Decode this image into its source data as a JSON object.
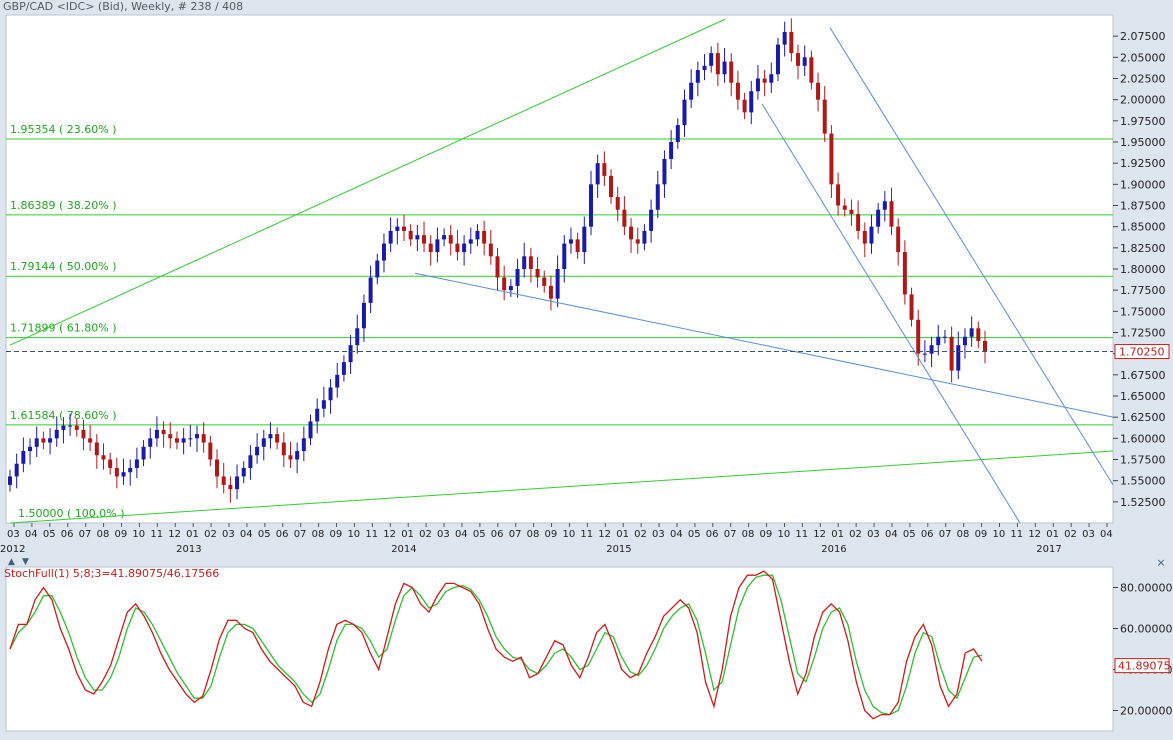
{
  "title": "GBP/CAD <IDC> (Bid), Weekly, # 238 / 408",
  "window_controls": {
    "close": "×",
    "up": "▲",
    "down": "▼"
  },
  "price_chart": {
    "type": "candlestick",
    "ylim": [
      1.5,
      2.1
    ],
    "ytick_labels": [
      "2.07500",
      "2.05000",
      "2.02500",
      "2.00000",
      "1.97500",
      "1.95000",
      "1.92500",
      "1.90000",
      "1.87500",
      "1.85000",
      "1.82500",
      "1.80000",
      "1.77500",
      "1.75000",
      "1.72500",
      "1.70000",
      "1.67500",
      "1.65000",
      "1.62500",
      "1.60000",
      "1.57500",
      "1.55000",
      "1.52500"
    ],
    "current_price": "1.70250",
    "colors": {
      "up": "#1a1aa8",
      "down": "#b01818",
      "fib": "#33cc33",
      "channel": "#5a8fd4",
      "current": "#35557a"
    },
    "fib_levels": [
      {
        "price": 1.95354,
        "label": "1.95354  ( 23.60% )"
      },
      {
        "price": 1.86389,
        "label": "1.86389  ( 38.20% )"
      },
      {
        "price": 1.79144,
        "label": "1.79144  ( 50.00% )"
      },
      {
        "price": 1.71899,
        "label": "1.71899  ( 61.80% )"
      },
      {
        "price": 1.61584,
        "label": "1.61584  ( 78.60% )"
      },
      {
        "price": 1.5,
        "label": "1.50000  ( 100.0% )"
      }
    ],
    "month_labels": [
      "03",
      "04",
      "05",
      "06",
      "07",
      "08",
      "09",
      "10",
      "11",
      "12",
      "01",
      "02",
      "03",
      "04",
      "05",
      "06",
      "07",
      "08",
      "09",
      "10",
      "11",
      "12",
      "01",
      "02",
      "03",
      "04",
      "05",
      "06",
      "07",
      "08",
      "09",
      "10",
      "11",
      "12",
      "01",
      "02",
      "03",
      "04",
      "05",
      "06",
      "07",
      "08",
      "09",
      "10",
      "11",
      "12",
      "01",
      "02",
      "03",
      "04",
      "05",
      "06",
      "07",
      "08",
      "09",
      "10",
      "11",
      "12",
      "01",
      "02",
      "03",
      "04"
    ],
    "year_labels": [
      "2012",
      "2013",
      "2014",
      "2015",
      "2016",
      "2017"
    ],
    "series_close": [
      1.555,
      1.57,
      1.585,
      1.59,
      1.6,
      1.595,
      1.6,
      1.61,
      1.615,
      1.615,
      1.61,
      1.6,
      1.595,
      1.58,
      1.575,
      1.565,
      1.555,
      1.56,
      1.565,
      1.575,
      1.59,
      1.6,
      1.61,
      1.605,
      1.6,
      1.595,
      1.6,
      1.6,
      1.605,
      1.595,
      1.575,
      1.555,
      1.545,
      1.54,
      1.555,
      1.565,
      1.58,
      1.59,
      1.6,
      1.605,
      1.595,
      1.58,
      1.575,
      1.585,
      1.6,
      1.62,
      1.635,
      1.645,
      1.66,
      1.675,
      1.69,
      1.71,
      1.73,
      1.76,
      1.79,
      1.81,
      1.83,
      1.845,
      1.85,
      1.845,
      1.835,
      1.84,
      1.83,
      1.82,
      1.835,
      1.84,
      1.83,
      1.82,
      1.83,
      1.835,
      1.845,
      1.83,
      1.815,
      1.79,
      1.775,
      1.78,
      1.8,
      1.815,
      1.8,
      1.79,
      1.78,
      1.765,
      1.8,
      1.83,
      1.835,
      1.82,
      1.85,
      1.9,
      1.925,
      1.91,
      1.885,
      1.87,
      1.85,
      1.835,
      1.83,
      1.845,
      1.87,
      1.9,
      1.93,
      1.95,
      1.97,
      2.0,
      2.02,
      2.035,
      2.04,
      2.055,
      2.03,
      2.045,
      2.02,
      2.0,
      1.985,
      2.01,
      2.025,
      2.02,
      2.03,
      2.065,
      2.08,
      2.055,
      2.04,
      2.05,
      2.02,
      2.0,
      1.96,
      1.9,
      1.875,
      1.87,
      1.865,
      1.845,
      1.83,
      1.85,
      1.87,
      1.88,
      1.85,
      1.82,
      1.77,
      1.74,
      1.7,
      1.7,
      1.71,
      1.72,
      1.72,
      1.68,
      1.71,
      1.72,
      1.73,
      1.715,
      1.7025
    ],
    "stoch_ylim": [
      10,
      90
    ],
    "stoch_ytick_labels": [
      "80.00000",
      "60.00000",
      "40.00000",
      "20.00000"
    ],
    "stoch_current": "41.89075",
    "stoch_k": [
      50,
      62,
      62,
      74,
      80,
      74,
      60,
      50,
      38,
      30,
      28,
      34,
      42,
      55,
      68,
      72,
      66,
      58,
      48,
      40,
      34,
      28,
      24,
      27,
      40,
      55,
      64,
      64,
      60,
      58,
      50,
      44,
      40,
      36,
      32,
      24,
      22,
      34,
      50,
      62,
      64,
      62,
      58,
      48,
      40,
      56,
      72,
      82,
      80,
      72,
      68,
      76,
      82,
      82,
      80,
      78,
      72,
      60,
      50,
      46,
      44,
      46,
      36,
      38,
      46,
      54,
      52,
      42,
      36,
      46,
      58,
      62,
      52,
      40,
      36,
      38,
      48,
      56,
      66,
      70,
      74,
      70,
      58,
      34,
      22,
      40,
      66,
      80,
      86,
      86,
      88,
      84,
      64,
      44,
      28,
      38,
      56,
      68,
      72,
      68,
      54,
      34,
      20,
      16,
      18,
      18,
      24,
      44,
      56,
      62,
      52,
      32,
      22,
      28,
      48,
      50,
      44
    ],
    "stoch_d": [
      50,
      58,
      62,
      68,
      76,
      76,
      68,
      58,
      46,
      36,
      30,
      30,
      36,
      46,
      60,
      70,
      68,
      62,
      54,
      46,
      38,
      32,
      26,
      26,
      32,
      46,
      58,
      62,
      62,
      60,
      54,
      48,
      42,
      38,
      34,
      28,
      24,
      28,
      40,
      54,
      62,
      62,
      60,
      54,
      46,
      50,
      64,
      76,
      80,
      76,
      70,
      72,
      78,
      80,
      81,
      79,
      74,
      66,
      56,
      50,
      46,
      45,
      40,
      38,
      42,
      48,
      50,
      46,
      40,
      42,
      50,
      58,
      56,
      46,
      39,
      37,
      42,
      50,
      60,
      66,
      70,
      72,
      64,
      48,
      30,
      34,
      52,
      70,
      80,
      85,
      86,
      86,
      74,
      56,
      38,
      34,
      46,
      60,
      68,
      70,
      62,
      44,
      30,
      22,
      19,
      18,
      20,
      32,
      48,
      58,
      56,
      42,
      30,
      26,
      36,
      46,
      47
    ]
  }
}
